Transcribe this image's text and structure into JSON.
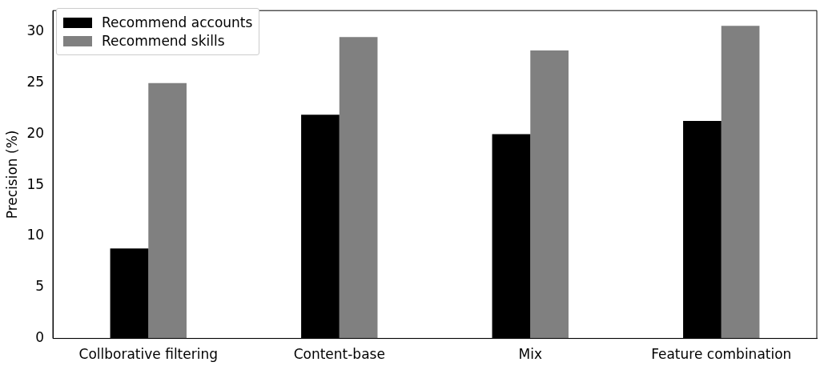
{
  "chart_data": {
    "type": "bar",
    "ylabel": "Precision (%)",
    "categories": [
      "Collborative filtering",
      "Content-base",
      "Mix",
      "Feature combination"
    ],
    "series": [
      {
        "name": "Recommend accounts",
        "color": "#000000",
        "values": [
          8.8,
          21.9,
          20.0,
          21.3
        ]
      },
      {
        "name": "Recommend skills",
        "color": "#808080",
        "values": [
          25.0,
          29.5,
          28.2,
          30.6
        ]
      }
    ],
    "ylim": [
      0,
      32.1
    ],
    "yticks": [
      0,
      5,
      10,
      15,
      20,
      25,
      30
    ],
    "grid": false,
    "legend": "top left"
  }
}
